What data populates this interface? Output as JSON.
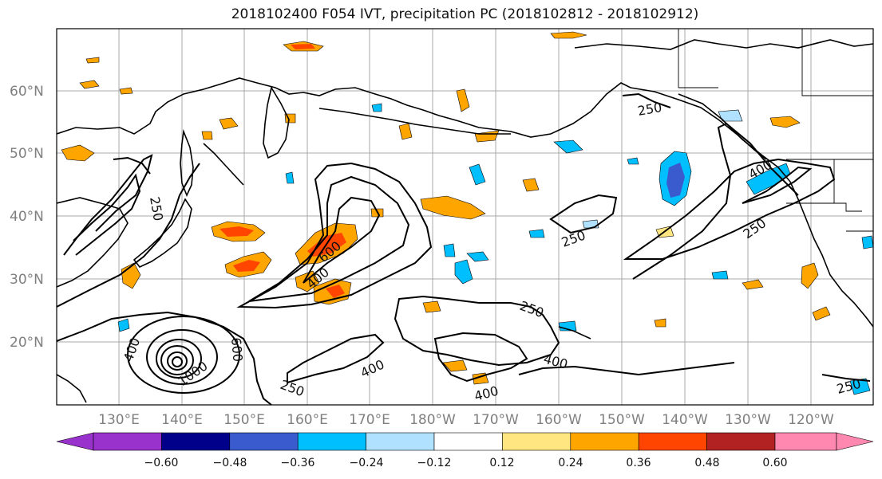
{
  "title": "2018102400 F054 IVT, precipitation PC (2018102812 - 2018102912)",
  "map": {
    "lat_labels": [
      "60°N",
      "50°N",
      "40°N",
      "30°N",
      "20°N"
    ],
    "lon_labels": [
      "130°E",
      "140°E",
      "150°E",
      "160°E",
      "170°E",
      "180°W",
      "170°W",
      "160°W",
      "150°W",
      "140°W",
      "130°W",
      "120°W"
    ],
    "contour_labels": [
      "250",
      "250",
      "250",
      "250",
      "250",
      "250",
      "250",
      "400",
      "400",
      "400",
      "400",
      "400",
      "400",
      "600",
      "600",
      "1000"
    ]
  },
  "colorbar": {
    "ticks": [
      "−0.60",
      "−0.48",
      "−0.36",
      "−0.24",
      "−0.12",
      "0.12",
      "0.24",
      "0.36",
      "0.48",
      "0.60"
    ],
    "colors": [
      "#9932cc",
      "#00008b",
      "#3a5bcd",
      "#00bfff",
      "#b0e2ff",
      "#ffffff",
      "#ffe680",
      "#ffa500",
      "#ff4500",
      "#b22222",
      "#ff88b0"
    ]
  }
}
